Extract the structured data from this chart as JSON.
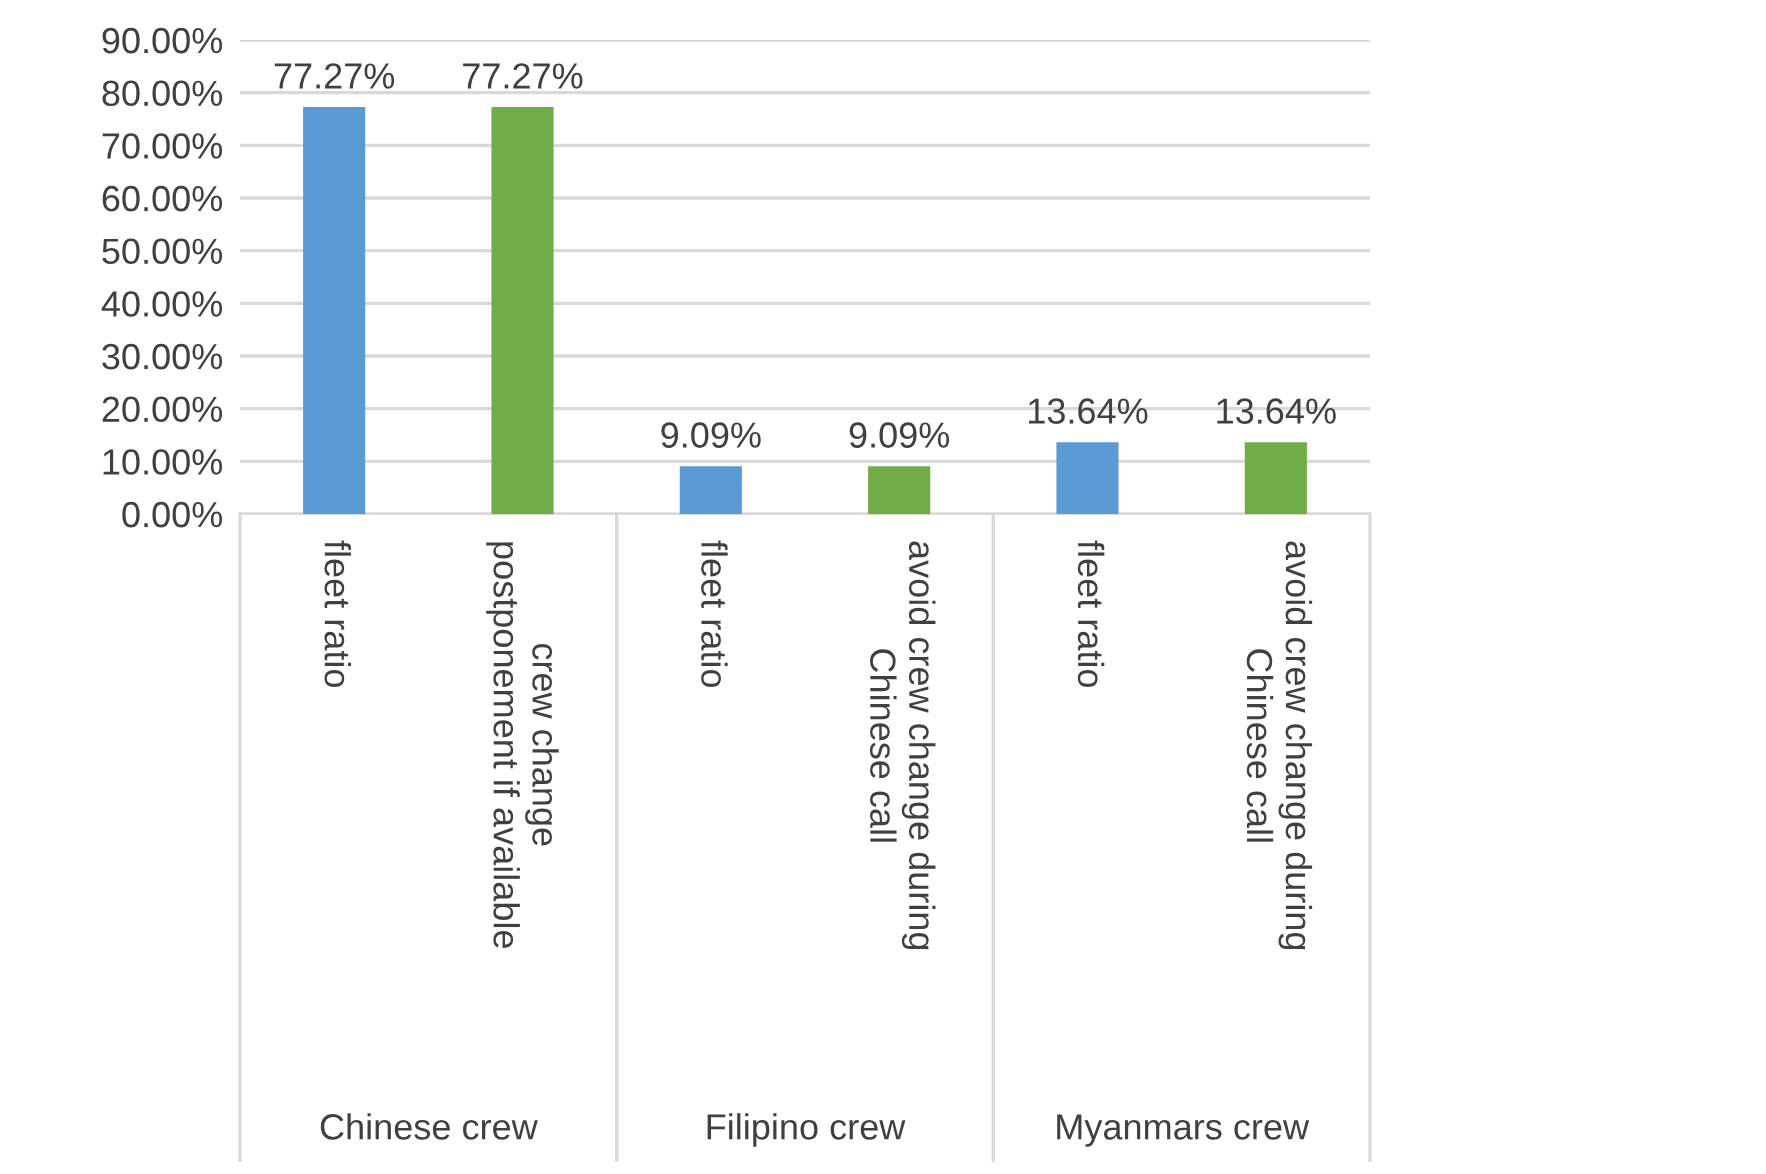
{
  "chart_data": {
    "type": "bar",
    "categories": [
      "fleet ratio",
      "crew change\npostponement if available",
      "fleet ratio",
      "avoid crew change during\nChinese call",
      "fleet ratio",
      "avoid crew change during\nChinese call"
    ],
    "values": [
      77.27,
      77.27,
      9.09,
      9.09,
      13.64,
      13.64
    ],
    "colors": [
      "#5b9bd5",
      "#70ad47",
      "#5b9bd5",
      "#70ad47",
      "#5b9bd5",
      "#70ad47"
    ],
    "value_labels": [
      "77.27%",
      "77.27%",
      "9.09%",
      "9.09%",
      "13.64%",
      "13.64%"
    ],
    "annotations": [
      "Chinese crew",
      "Filipino crew",
      "Myanmars crew"
    ],
    "ylim": [
      0,
      90
    ],
    "yticks": [
      {
        "value": 0,
        "label": "0.00%"
      },
      {
        "value": 10,
        "label": "10.00%"
      },
      {
        "value": 20,
        "label": "20.00%"
      },
      {
        "value": 30,
        "label": "30.00%"
      },
      {
        "value": 40,
        "label": "40.00%"
      },
      {
        "value": 50,
        "label": "50.00%"
      },
      {
        "value": 60,
        "label": "60.00%"
      },
      {
        "value": 70,
        "label": "70.00%"
      },
      {
        "value": 80,
        "label": "80.00%"
      },
      {
        "value": 90,
        "label": "90.00%"
      }
    ],
    "grid": "y",
    "legend": false
  }
}
